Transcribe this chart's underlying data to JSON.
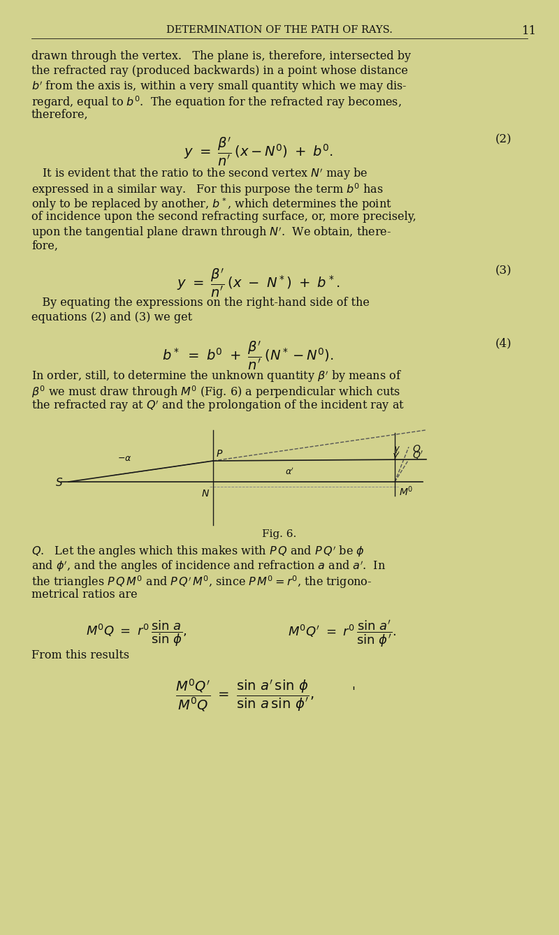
{
  "bg_color": "#d2d28e",
  "text_color": "#111111",
  "figsize": [
    8.0,
    13.39
  ],
  "dpi": 100,
  "header": "DETERMINATION OF THE PATH OF RAYS.",
  "page_number": "11",
  "para1": [
    "drawn through the vertex.   The plane is, therefore, intersected by",
    "the refracted ray (produced backwards) in a point whose distance",
    "$b'$ from the axis is, within a very small quantity which we may dis-",
    "regard, equal to $b^0$.  The equation for the refracted ray becomes,",
    "therefore,"
  ],
  "eq2": "$y \\ = \\ \\dfrac{\\beta'}{n'}\\,(x - N^0) \\ + \\ b^0.$",
  "eq2_num": "(2)",
  "para2": [
    "   It is evident that the ratio to the second vertex $N'$ may be",
    "expressed in a similar way.   For this purpose the term $b^0$ has",
    "only to be replaced by another, $b^*$, which determines the point",
    "of incidence upon the second refracting surface, or, more precisely,",
    "upon the tangential plane drawn through $N'$.  We obtain, there-",
    "fore,"
  ],
  "eq3": "$y \\ = \\ \\dfrac{\\beta'}{n'}\\,(x \\ - \\ N^*) \\ + \\ b^*.$",
  "eq3_num": "(3)",
  "para3": [
    "   By equating the expressions on the right-hand side of the",
    "equations (2) and (3) we get"
  ],
  "eq4": "$b^* \\ = \\ b^0 \\ + \\ \\dfrac{\\beta'}{n'}\\,(N^* - N^0).$",
  "eq4_num": "(4)",
  "para4": [
    "In order, still, to determine the unknown quantity $\\beta'$ by means of",
    "$\\beta^0$ we must draw through $M^0$ (Fig. 6) a perpendicular which cuts",
    "the refracted ray at $Q'$ and the prolongation of the incident ray at"
  ],
  "fig_label": "Fig. 6.",
  "para5": [
    "$Q$.   Let the angles which this makes with $P\\,Q$ and $P\\,Q'$ be $\\phi$",
    "and $\\phi'$, and the angles of incidence and refraction $a$ and $a'$.  In",
    "the triangles $P\\,Q\\,M^0$ and $P\\,Q'\\,M^0$, since $P\\,M^0=r^0$, the trigono-",
    "metrical ratios are"
  ],
  "eq5a": "$M^0Q \\ = \\ r^0\\,\\dfrac{\\sin\\,a}{\\sin\\,\\phi},$",
  "eq5b": "$M^0Q' \\ = \\ r^0\\,\\dfrac{\\sin\\,a'}{\\sin\\,\\phi'}.$",
  "from_this": "From this results",
  "eq6": "$\\dfrac{M^0Q'}{M^0Q} \\ = \\ \\dfrac{\\sin\\,a'\\,\\sin\\,\\phi}{\\sin\\,a\\,\\sin\\,\\phi'},$"
}
